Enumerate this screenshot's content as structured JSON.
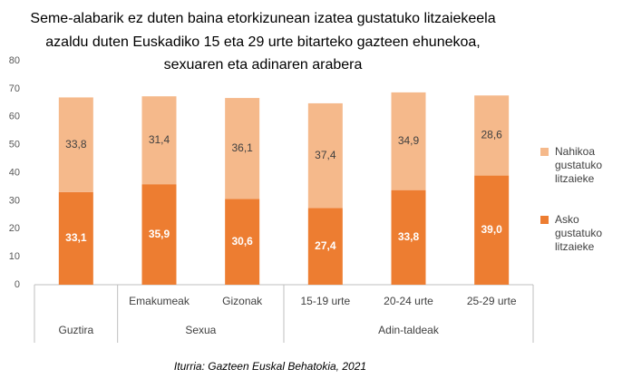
{
  "chart_data": {
    "type": "stacked-bar",
    "title": [
      "Seme-alabarik ez duten baina etorkizunean izatea gustatuko litzaiekeela",
      "azaldu duten Euskadiko 15 eta 29 urte bitarteko gazteen ehunekoa,",
      "sexuaren eta adinaren arabera"
    ],
    "groups": [
      {
        "label": "Guztira",
        "categories": [
          null
        ]
      },
      {
        "label": "Sexua",
        "categories": [
          "Emakumeak",
          "Gizonak"
        ]
      },
      {
        "label": "Adin-taldeak",
        "categories": [
          "15-19 urte",
          "20-24 urte",
          "25-29 urte"
        ]
      }
    ],
    "series": [
      {
        "name": "Asko gustatuko litzaieke",
        "color": "#ed7d31",
        "label_color": "#ffffff",
        "values": [
          33.1,
          35.9,
          30.6,
          27.4,
          33.8,
          39.0
        ],
        "value_labels": [
          "33,1",
          "35,9",
          "30,6",
          "27,4",
          "33,8",
          "39,0"
        ]
      },
      {
        "name": "Nahikoa gustatuko litzaieke",
        "color": "#f5b98b",
        "label_color": "#404040",
        "values": [
          33.8,
          31.4,
          36.1,
          37.4,
          34.9,
          28.6
        ],
        "value_labels": [
          "33,8",
          "31,4",
          "36,1",
          "37,4",
          "34,9",
          "28,6"
        ]
      }
    ],
    "ylim": [
      0,
      80
    ],
    "yticks": [
      0,
      10,
      20,
      30,
      40,
      50,
      60,
      70,
      80
    ],
    "grid": false,
    "source": "Iturria: Gazteen Euskal Behatokia, 2021"
  }
}
